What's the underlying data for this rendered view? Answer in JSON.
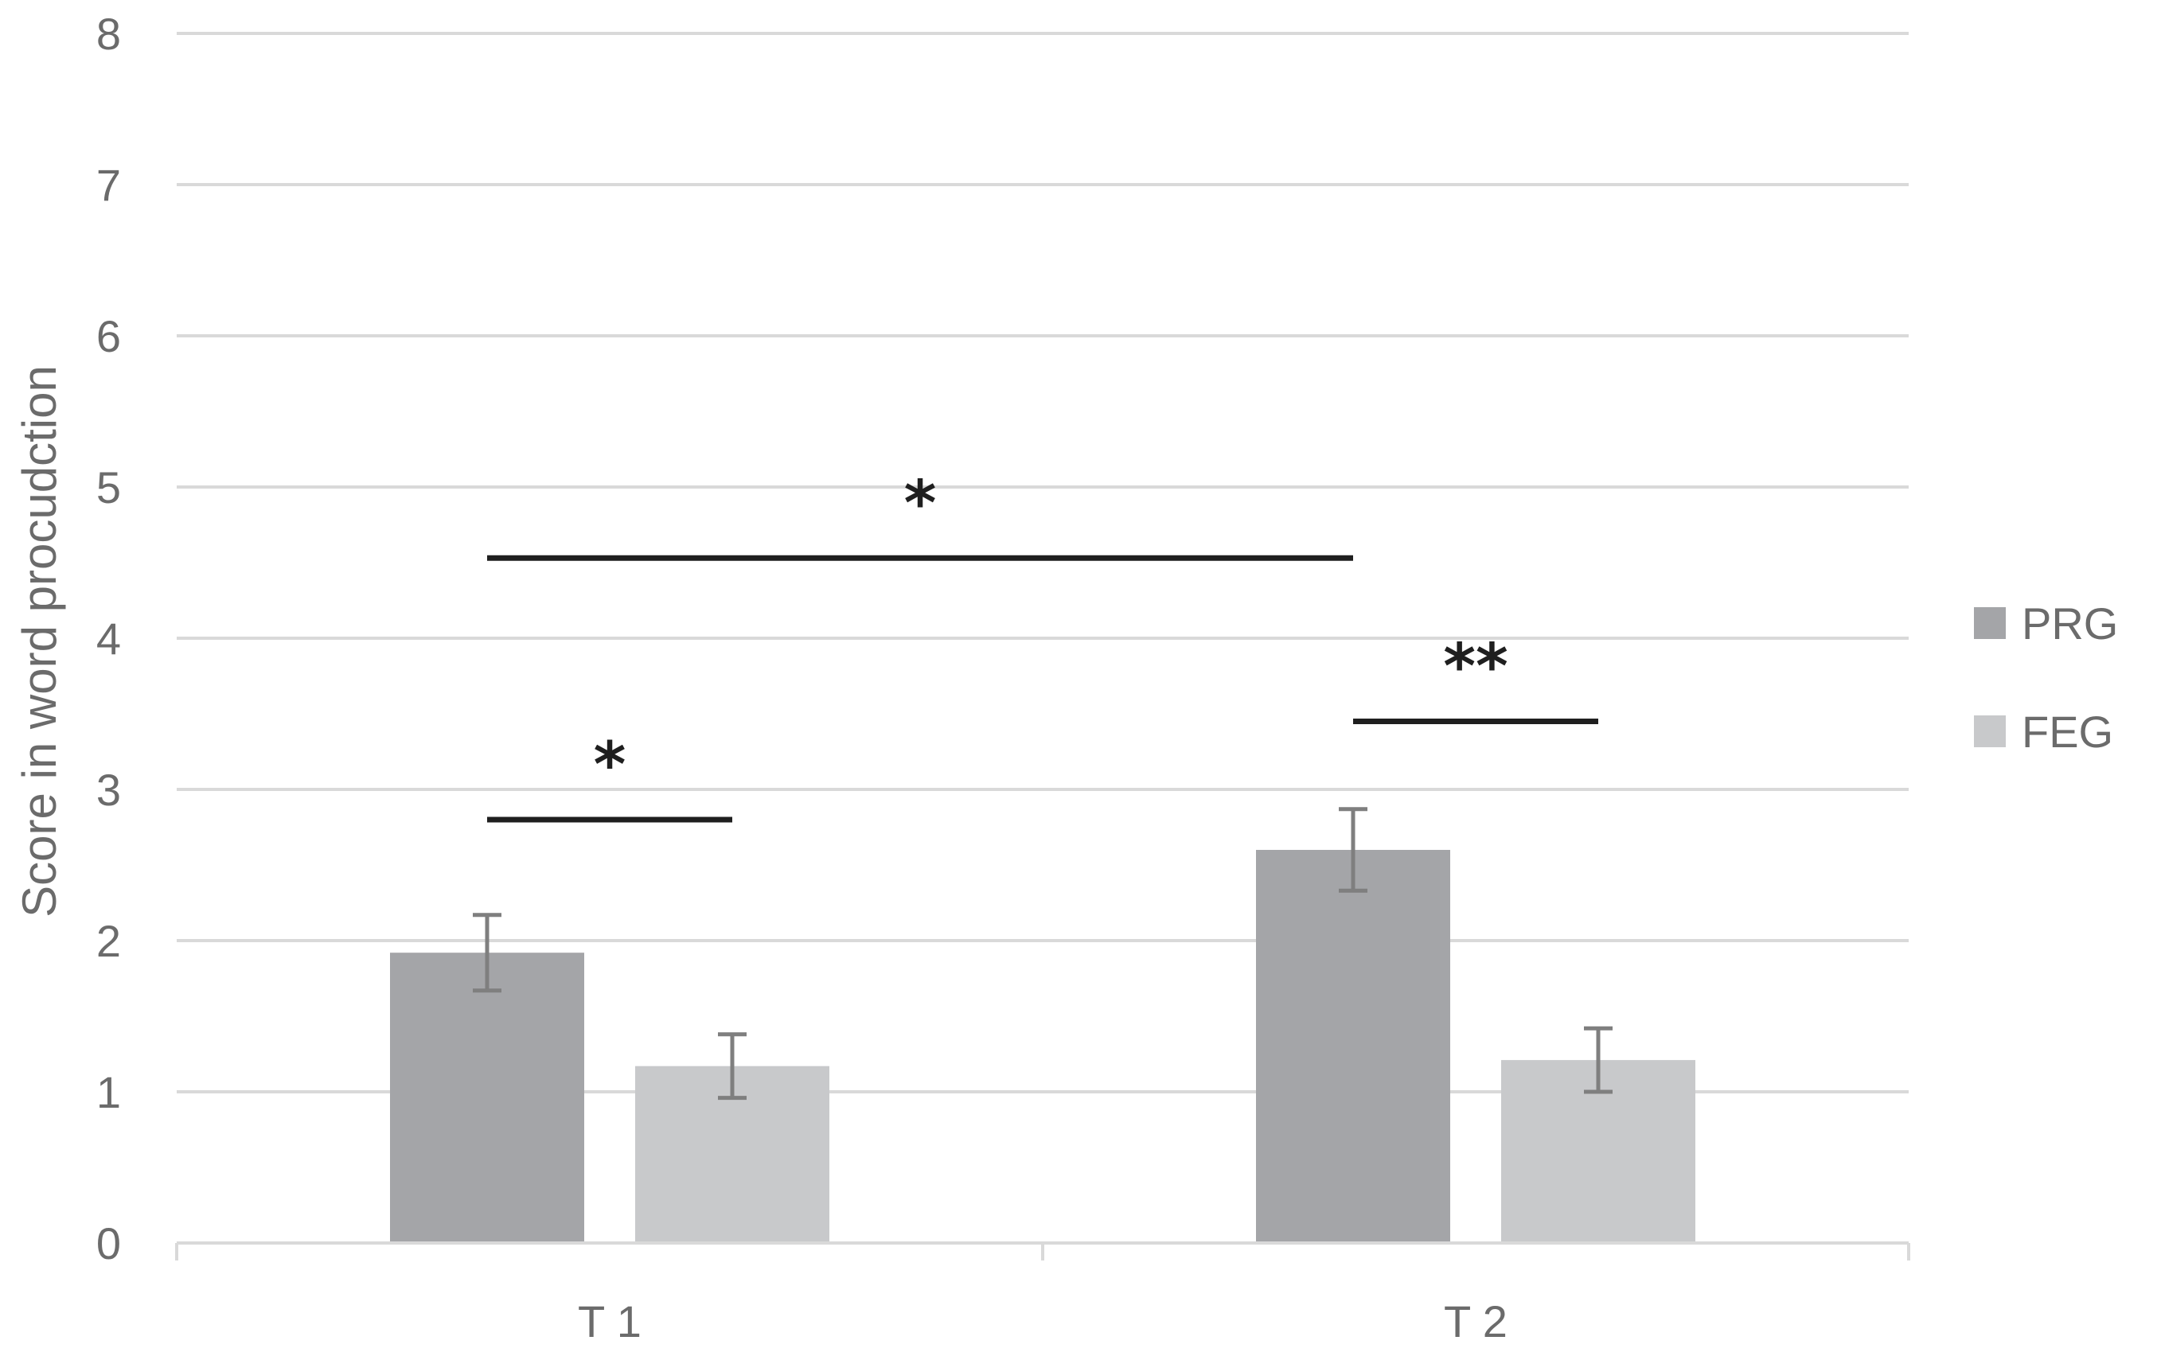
{
  "chart_data": {
    "type": "bar",
    "title": "",
    "xlabel": "",
    "ylabel": "Score in word procudction",
    "ylim": [
      0,
      8
    ],
    "yticks": [
      0,
      1,
      2,
      3,
      4,
      5,
      6,
      7,
      8
    ],
    "grid": true,
    "legend_position": "right",
    "categories": [
      "T 1",
      "T 2"
    ],
    "series": [
      {
        "name": "PRG",
        "color": "#a4a5a8",
        "values": [
          1.92,
          2.6
        ],
        "errors": [
          0.25,
          0.27
        ]
      },
      {
        "name": "FEG",
        "color": "#c8c9cb",
        "values": [
          1.17,
          1.21
        ],
        "errors": [
          0.21,
          0.21
        ]
      }
    ],
    "annotations": [
      {
        "label": "*",
        "from": {
          "category": 0,
          "series": 0
        },
        "to": {
          "category": 1,
          "series": 0
        },
        "y": 4.53
      },
      {
        "label": "*",
        "from": {
          "category": 0,
          "series": 0
        },
        "to": {
          "category": 0,
          "series": 1
        },
        "y": 2.8
      },
      {
        "label": "**",
        "from": {
          "category": 1,
          "series": 0
        },
        "to": {
          "category": 1,
          "series": 1
        },
        "y": 3.45
      }
    ]
  }
}
